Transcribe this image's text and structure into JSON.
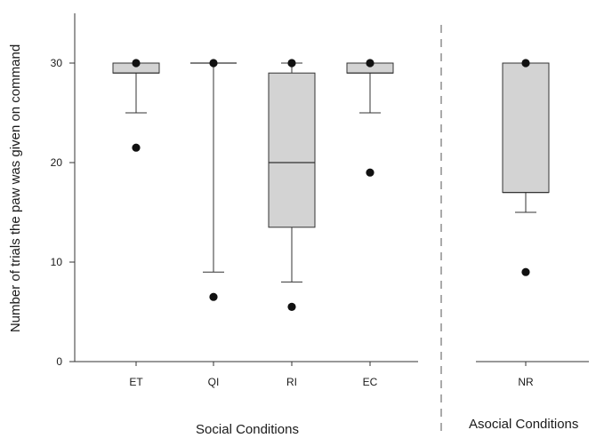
{
  "chart_data": {
    "type": "box",
    "ylabel": "Number of trials the paw was given on command",
    "ylim": [
      0,
      35
    ],
    "yticks": [
      0,
      10,
      20,
      30
    ],
    "grid": false,
    "box_fill": "#d3d3d3",
    "panels": [
      {
        "group_label": "Social Conditions",
        "categories": [
          "ET",
          "QI",
          "RI",
          "EC"
        ],
        "boxes": [
          {
            "category": "ET",
            "whisker_low": 25,
            "q1": 29,
            "median": 29,
            "q3": 30,
            "whisker_high": 30,
            "outliers": [
              21.5,
              30
            ]
          },
          {
            "category": "QI",
            "whisker_low": 9,
            "q1": 30,
            "median": 30,
            "q3": 30,
            "whisker_high": 30,
            "outliers": [
              6.5,
              30
            ]
          },
          {
            "category": "RI",
            "whisker_low": 8,
            "q1": 13.5,
            "median": 20,
            "q3": 29,
            "whisker_high": 30,
            "outliers": [
              5.5,
              30
            ]
          },
          {
            "category": "EC",
            "whisker_low": 25,
            "q1": 29,
            "median": 29,
            "q3": 30,
            "whisker_high": 30,
            "outliers": [
              19,
              30
            ]
          }
        ]
      },
      {
        "group_label": "Asocial Conditions",
        "categories": [
          "NR"
        ],
        "boxes": [
          {
            "category": "NR",
            "whisker_low": 15,
            "q1": 17,
            "median": 17,
            "q3": 30,
            "whisker_high": 30,
            "outliers": [
              9,
              30
            ]
          }
        ]
      }
    ]
  }
}
